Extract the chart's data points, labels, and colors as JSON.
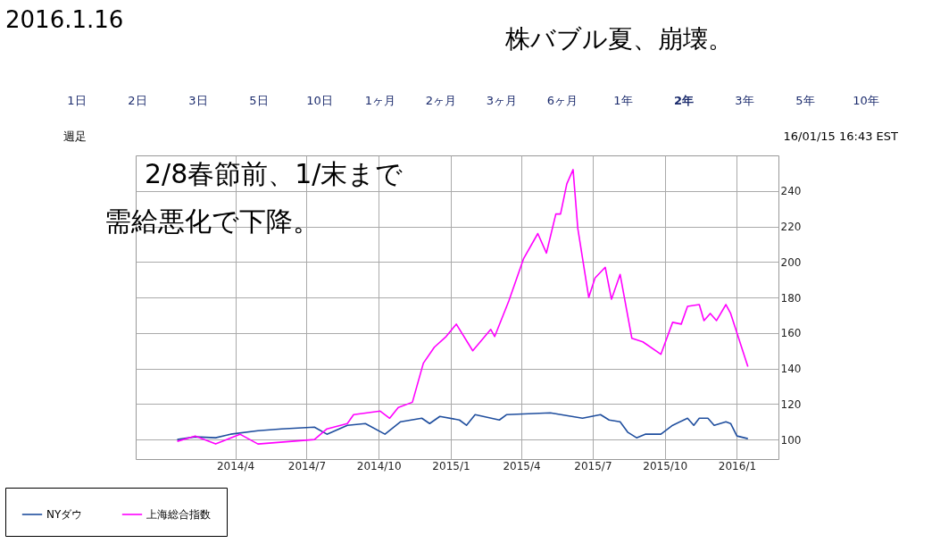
{
  "chart_data": {
    "type": "line",
    "annotations": [
      "2016.1.16",
      "株バブル夏、崩壊。",
      "1日",
      "2日",
      "3日",
      "5日",
      "10日",
      "1ヶ月",
      "2ヶ月",
      "3ヶ月",
      "6ヶ月",
      "1年",
      "2年",
      "3年",
      "5年",
      "10年",
      "週足",
      "16/01/15 16:43 EST",
      "2/8春節前、1/末まで",
      "需給悪化で下降。"
    ],
    "series": [
      {
        "name": "NYダウ",
        "color": "#1f4e9e",
        "x": [
          "2014-01-17",
          "2014-02-09",
          "2014-03-07",
          "2014-03-26",
          "2014-04-30",
          "2014-05-30",
          "2014-07-11",
          "2014-07-27",
          "2014-08-22",
          "2014-09-14",
          "2014-10-09",
          "2014-10-29",
          "2014-11-25",
          "2014-12-05",
          "2014-12-18",
          "2015-01-12",
          "2015-01-21",
          "2015-02-01",
          "2015-03-04",
          "2015-03-13",
          "2015-05-08",
          "2015-06-18",
          "2015-07-11",
          "2015-07-22",
          "2015-08-05",
          "2015-08-15",
          "2015-08-26",
          "2015-09-06",
          "2015-09-26",
          "2015-10-11",
          "2015-10-30",
          "2015-11-07",
          "2015-11-14",
          "2015-11-25",
          "2015-12-03",
          "2015-12-18",
          "2015-12-24",
          "2016-01-01",
          "2016-01-15"
        ],
        "values": [
          100,
          101.5,
          101,
          103,
          105,
          106,
          107,
          103,
          108,
          109,
          103,
          110,
          112,
          109,
          113,
          111,
          108,
          114,
          111,
          114,
          115,
          112,
          114,
          111,
          110,
          104,
          101,
          103,
          103,
          108,
          112,
          108,
          112,
          112,
          108,
          110,
          109,
          102,
          100.5
        ]
      },
      {
        "name": "上海総合指数",
        "color": "#ff00ff",
        "x": [
          "2014-01-17",
          "2014-02-09",
          "2014-03-07",
          "2014-04-07",
          "2014-04-30",
          "2014-07-11",
          "2014-07-27",
          "2014-08-22",
          "2014-08-30",
          "2014-10-03",
          "2014-10-15",
          "2014-10-26",
          "2014-11-13",
          "2014-11-27",
          "2014-12-11",
          "2014-12-26",
          "2015-01-08",
          "2015-01-29",
          "2015-02-21",
          "2015-02-26",
          "2015-03-16",
          "2015-04-04",
          "2015-04-22",
          "2015-05-03",
          "2015-05-15",
          "2015-05-21",
          "2015-05-29",
          "2015-06-06",
          "2015-06-12",
          "2015-06-26",
          "2015-07-04",
          "2015-07-17",
          "2015-07-25",
          "2015-08-05",
          "2015-08-20",
          "2015-09-03",
          "2015-09-26",
          "2015-10-11",
          "2015-10-22",
          "2015-10-30",
          "2015-11-14",
          "2015-11-20",
          "2015-11-28",
          "2015-12-06",
          "2015-12-18",
          "2015-12-24",
          "2016-01-15"
        ],
        "values": [
          99,
          102,
          97.5,
          103,
          97.5,
          100,
          106,
          109,
          114,
          116,
          112,
          118,
          121,
          143,
          152,
          158,
          165,
          150,
          162,
          158,
          178,
          202,
          216,
          205,
          227,
          227,
          244,
          252,
          219,
          180,
          191,
          197,
          179,
          193,
          157,
          155,
          148,
          166,
          165,
          175,
          176,
          167,
          171,
          167,
          176,
          171,
          141
        ]
      }
    ],
    "xlim": [
      "2013-11-25",
      "2016-02-23"
    ],
    "xticks": [
      {
        "value": "2014-04-01",
        "label": "2014/4"
      },
      {
        "value": "2014-07-01",
        "label": "2014/7"
      },
      {
        "value": "2014-10-01",
        "label": "2014/10"
      },
      {
        "value": "2015-01-01",
        "label": "2015/1"
      },
      {
        "value": "2015-04-01",
        "label": "2015/4"
      },
      {
        "value": "2015-07-01",
        "label": "2015/7"
      },
      {
        "value": "2015-10-01",
        "label": "2015/10"
      },
      {
        "value": "2016-01-01",
        "label": "2016/1"
      }
    ],
    "ylim": [
      89,
      260
    ],
    "yticks": [
      100,
      120,
      140,
      160,
      180,
      200,
      220,
      240
    ],
    "grid": true,
    "legend": "bottom"
  }
}
